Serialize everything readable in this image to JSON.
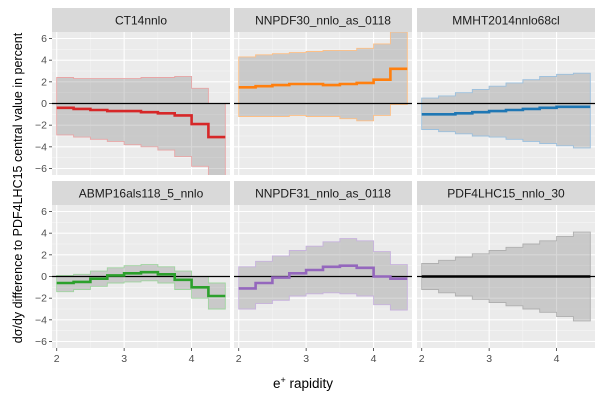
{
  "chart_data": {
    "type": "step-facet",
    "xlabel_base": "e",
    "xlabel_sup": "+",
    "xlabel_rest": " rapidity",
    "ylabel": "dσ/dy difference to PDF4LHC15 central value in percent",
    "x_edges": [
      2.0,
      2.25,
      2.5,
      2.75,
      3.0,
      3.25,
      3.5,
      3.75,
      4.0,
      4.25,
      4.5
    ],
    "xlim": [
      1.93,
      4.57
    ],
    "ylim": [
      -6.6,
      6.6
    ],
    "x_ticks": [
      2,
      3,
      4
    ],
    "y_ticks": [
      -6,
      -4,
      -2,
      0,
      2,
      4,
      6
    ],
    "y_tick_labels": [
      "−6",
      "−4",
      "−2",
      "0",
      "2",
      "4",
      "6"
    ],
    "panels": [
      {
        "name": "CT14nnlo",
        "color": "#d62728",
        "band_color": "#e8a5a6",
        "central": [
          -0.4,
          -0.5,
          -0.6,
          -0.7,
          -0.7,
          -0.8,
          -0.9,
          -1.1,
          -1.9,
          -3.1
        ],
        "upper": [
          2.4,
          2.3,
          2.3,
          2.3,
          2.3,
          2.4,
          2.4,
          2.5,
          1.4,
          0.0
        ],
        "lower": [
          -2.9,
          -3.1,
          -3.3,
          -3.5,
          -3.8,
          -4.0,
          -4.3,
          -4.9,
          -5.8,
          -6.7
        ]
      },
      {
        "name": "NNPDF30_nnlo_as_0118",
        "color": "#ff7f0e",
        "band_color": "#fdbf86",
        "central": [
          1.5,
          1.6,
          1.7,
          1.8,
          1.8,
          1.7,
          1.8,
          1.9,
          2.2,
          3.2
        ],
        "upper": [
          4.3,
          4.5,
          4.6,
          4.7,
          4.8,
          4.9,
          4.9,
          5.1,
          5.5,
          6.6
        ],
        "lower": [
          -1.2,
          -1.2,
          -1.2,
          -1.1,
          -1.2,
          -1.2,
          -1.4,
          -1.6,
          -1.1,
          -0.1
        ]
      },
      {
        "name": "MMHT2014nnlo68cl",
        "color": "#1f77b4",
        "band_color": "#9bc0de",
        "central": [
          -1.0,
          -1.0,
          -0.9,
          -0.8,
          -0.7,
          -0.6,
          -0.5,
          -0.4,
          -0.3,
          -0.3
        ],
        "upper": [
          0.5,
          0.7,
          1.0,
          1.3,
          1.6,
          1.9,
          2.2,
          2.5,
          2.7,
          2.8
        ],
        "lower": [
          -2.4,
          -2.6,
          -2.8,
          -3.0,
          -3.1,
          -3.3,
          -3.5,
          -3.7,
          -3.9,
          -4.1
        ]
      },
      {
        "name": "ABMP16als118_5_nnlo",
        "color": "#2ca02c",
        "band_color": "#9fd49f",
        "central": [
          -0.6,
          -0.5,
          -0.2,
          0.1,
          0.3,
          0.4,
          0.2,
          -0.3,
          -1.0,
          -1.8
        ],
        "upper": [
          0.1,
          0.2,
          0.5,
          0.8,
          1.0,
          1.1,
          0.9,
          0.5,
          0.0,
          -0.6
        ],
        "lower": [
          -1.4,
          -1.2,
          -0.9,
          -0.6,
          -0.5,
          -0.4,
          -0.6,
          -1.2,
          -2.0,
          -3.0
        ]
      },
      {
        "name": "NNPDF31_nnlo_as_0118",
        "color": "#9467bd",
        "band_color": "#c7b2dd",
        "central": [
          -1.1,
          -0.6,
          -0.1,
          0.3,
          0.6,
          0.9,
          1.0,
          0.8,
          0.0,
          -0.2
        ],
        "upper": [
          0.9,
          1.4,
          1.9,
          2.4,
          2.8,
          3.2,
          3.5,
          3.3,
          2.3,
          1.1
        ],
        "lower": [
          -3.0,
          -2.5,
          -2.2,
          -1.8,
          -1.6,
          -1.5,
          -1.6,
          -1.8,
          -2.6,
          -3.1
        ]
      },
      {
        "name": "PDF4LHC15_nnlo_30",
        "color": "#000000",
        "band_color": "#b0b0b0",
        "central": [
          0,
          0,
          0,
          0,
          0,
          0,
          0,
          0,
          0,
          0
        ],
        "upper": [
          1.2,
          1.5,
          1.8,
          2.1,
          2.4,
          2.7,
          3.0,
          3.3,
          3.7,
          4.1
        ],
        "lower": [
          -1.2,
          -1.5,
          -1.8,
          -2.1,
          -2.4,
          -2.7,
          -3.0,
          -3.3,
          -3.7,
          -4.1
        ]
      }
    ]
  }
}
